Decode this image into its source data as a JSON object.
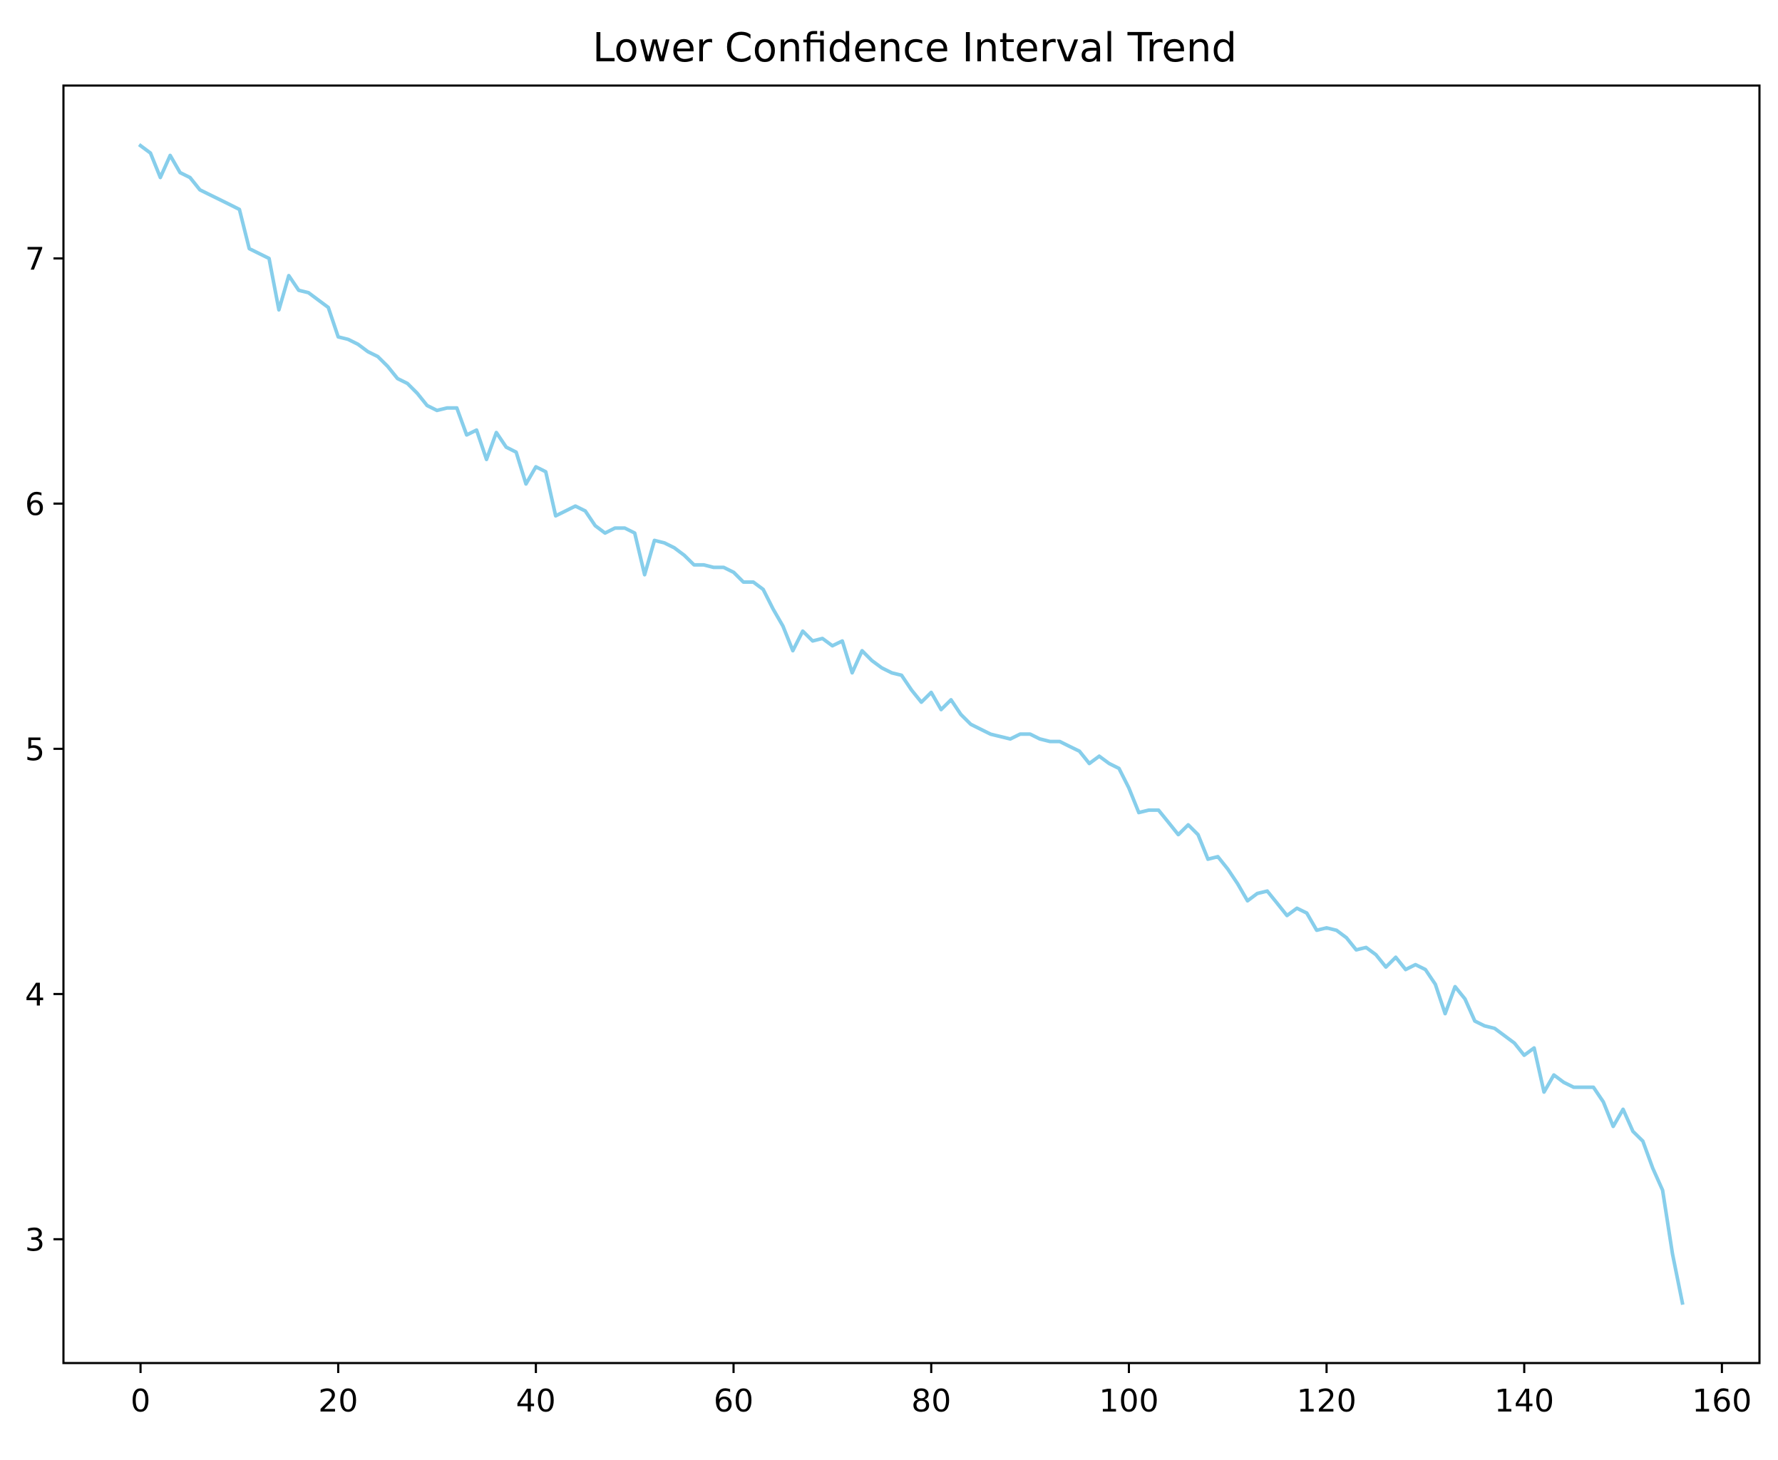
{
  "chart_data": {
    "type": "line",
    "title": "Lower Confidence Interval Trend",
    "xlabel": "",
    "ylabel": "",
    "xlim": [
      -7.8,
      163.8
    ],
    "ylim": [
      2.495,
      7.705
    ],
    "x_ticks": [
      0,
      20,
      40,
      60,
      80,
      100,
      120,
      140,
      160
    ],
    "x_tick_labels": [
      "0",
      "20",
      "40",
      "60",
      "80",
      "100",
      "120",
      "140",
      "160"
    ],
    "y_ticks": [
      3,
      4,
      5,
      6,
      7
    ],
    "y_tick_labels": [
      "3",
      "4",
      "5",
      "6",
      "7"
    ],
    "grid": false,
    "legend": "none",
    "series": [
      {
        "color": "#87CEEB",
        "x": [
          0,
          1,
          2,
          3,
          4,
          5,
          6,
          7,
          8,
          9,
          10,
          11,
          12,
          13,
          14,
          15,
          16,
          17,
          18,
          19,
          20,
          21,
          22,
          23,
          24,
          25,
          26,
          27,
          28,
          29,
          30,
          31,
          32,
          33,
          34,
          35,
          36,
          37,
          38,
          39,
          40,
          41,
          42,
          43,
          44,
          45,
          46,
          47,
          48,
          49,
          50,
          51,
          52,
          53,
          54,
          55,
          56,
          57,
          58,
          59,
          60,
          61,
          62,
          63,
          64,
          65,
          66,
          67,
          68,
          69,
          70,
          71,
          72,
          73,
          74,
          75,
          76,
          77,
          78,
          79,
          80,
          81,
          82,
          83,
          84,
          85,
          86,
          87,
          88,
          89,
          90,
          91,
          92,
          93,
          94,
          95,
          96,
          97,
          98,
          99,
          100,
          101,
          102,
          103,
          104,
          105,
          106,
          107,
          108,
          109,
          110,
          111,
          112,
          113,
          114,
          115,
          116,
          117,
          118,
          119,
          120,
          121,
          122,
          123,
          124,
          125,
          126,
          127,
          128,
          129,
          130,
          131,
          132,
          133,
          134,
          135,
          136,
          137,
          138,
          139,
          140,
          141,
          142,
          143,
          144,
          145,
          146,
          147,
          148,
          149,
          150,
          151,
          152,
          153,
          154,
          155,
          156
        ],
        "values": [
          7.46,
          7.43,
          7.33,
          7.42,
          7.35,
          7.33,
          7.28,
          7.26,
          7.24,
          7.22,
          7.2,
          7.04,
          7.02,
          7.0,
          6.79,
          6.93,
          6.87,
          6.86,
          6.83,
          6.8,
          6.68,
          6.67,
          6.65,
          6.62,
          6.6,
          6.56,
          6.51,
          6.49,
          6.45,
          6.4,
          6.38,
          6.39,
          6.39,
          6.28,
          6.3,
          6.18,
          6.29,
          6.23,
          6.21,
          6.08,
          6.15,
          6.13,
          5.95,
          5.97,
          5.99,
          5.97,
          5.91,
          5.88,
          5.9,
          5.9,
          5.88,
          5.71,
          5.85,
          5.84,
          5.82,
          5.79,
          5.75,
          5.75,
          5.74,
          5.74,
          5.72,
          5.68,
          5.68,
          5.65,
          5.57,
          5.5,
          5.4,
          5.48,
          5.44,
          5.45,
          5.42,
          5.44,
          5.31,
          5.4,
          5.36,
          5.33,
          5.31,
          5.3,
          5.24,
          5.19,
          5.23,
          5.16,
          5.2,
          5.14,
          5.1,
          5.08,
          5.06,
          5.05,
          5.04,
          5.06,
          5.06,
          5.04,
          5.03,
          5.03,
          5.01,
          4.99,
          4.94,
          4.97,
          4.94,
          4.92,
          4.84,
          4.74,
          4.75,
          4.75,
          4.7,
          4.65,
          4.69,
          4.65,
          4.55,
          4.56,
          4.51,
          4.45,
          4.38,
          4.41,
          4.42,
          4.37,
          4.32,
          4.35,
          4.33,
          4.26,
          4.27,
          4.26,
          4.23,
          4.18,
          4.19,
          4.16,
          4.11,
          4.15,
          4.1,
          4.12,
          4.1,
          4.04,
          3.92,
          4.03,
          3.98,
          3.89,
          3.87,
          3.86,
          3.83,
          3.8,
          3.75,
          3.78,
          3.6,
          3.67,
          3.64,
          3.62,
          3.62,
          3.62,
          3.56,
          3.46,
          3.53,
          3.44,
          3.4,
          3.29,
          3.2,
          2.94,
          2.74
        ]
      }
    ]
  }
}
